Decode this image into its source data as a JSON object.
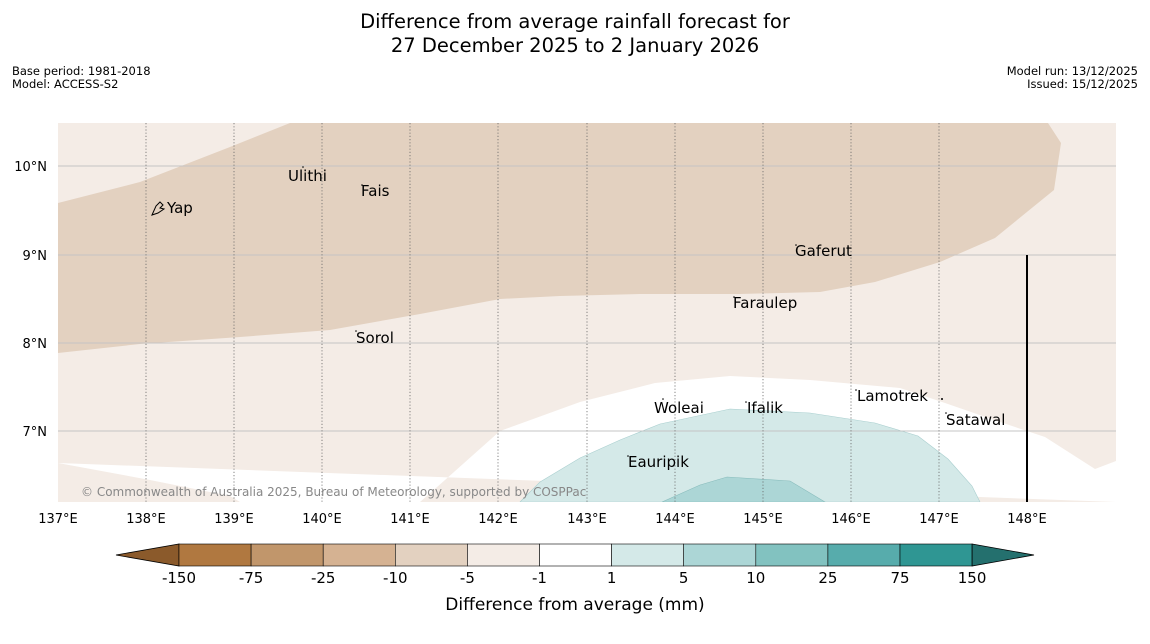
{
  "title": {
    "line1": "Difference from average rainfall forecast for",
    "line2": "27 December 2025 to 2 January 2026"
  },
  "meta": {
    "base_period": "Base period: 1981-2018",
    "model": "Model: ACCESS-S2",
    "model_run": "Model run: 13/12/2025",
    "issued": "Issued: 15/12/2025"
  },
  "map": {
    "lat_labels": [
      "10°N",
      "9°N",
      "8°N",
      "7°N"
    ],
    "lon_labels": [
      "137°E",
      "138°E",
      "139°E",
      "140°E",
      "141°E",
      "142°E",
      "143°E",
      "144°E",
      "145°E",
      "146°E",
      "147°E",
      "148°E"
    ],
    "places": [
      {
        "id": "yap",
        "name": "Yap"
      },
      {
        "id": "ulithi",
        "name": "Ulithi"
      },
      {
        "id": "fais",
        "name": "Fais"
      },
      {
        "id": "gaferut",
        "name": "Gaferut"
      },
      {
        "id": "faraulep",
        "name": "Faraulep"
      },
      {
        "id": "sorol",
        "name": "Sorol"
      },
      {
        "id": "lamotrek",
        "name": "Lamotrek"
      },
      {
        "id": "woleai",
        "name": "Woleai"
      },
      {
        "id": "ifalik",
        "name": "Ifalik"
      },
      {
        "id": "satawal",
        "name": "Satawal"
      },
      {
        "id": "eauripik",
        "name": "Eauripik"
      }
    ],
    "copyright": "© Commonwealth of Australia 2025, Bureau of Meteorology, supported by COSPPac"
  },
  "colorbar": {
    "label": "Difference from average (mm)",
    "ticks": [
      "-150",
      "-75",
      "-25",
      "-10",
      "-5",
      "-1",
      "1",
      "5",
      "10",
      "25",
      "75",
      "150"
    ],
    "colors": [
      "#8b5a2b",
      "#b07840",
      "#c1966b",
      "#d5b292",
      "#e3d1c0",
      "#f4ece6",
      "#ffffff",
      "#d4e9e8",
      "#acd6d6",
      "#82c2c0",
      "#57acac",
      "#2f9693",
      "#24706e"
    ]
  }
}
